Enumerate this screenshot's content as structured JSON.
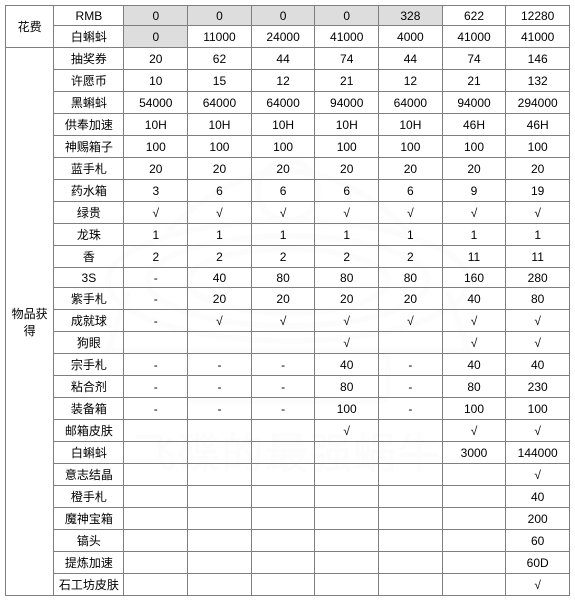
{
  "table": {
    "colors": {
      "border": "#7f7f7f",
      "shaded_bg": "#d9d9d9",
      "white_bg": "#ffffff",
      "text": "#000000"
    },
    "fontsize": 12,
    "section1_label": "花费",
    "section2_label": "物品获得",
    "header_cols": [
      "RMB",
      "0",
      "0",
      "0",
      "0",
      "328",
      "622",
      "12280"
    ],
    "shaded_cols": [
      2,
      3,
      4,
      5,
      6
    ],
    "cost_rows": [
      {
        "item": "白蝌蚪",
        "values": [
          "0",
          "11000",
          "24000",
          "41000",
          "4000",
          "41000",
          "41000"
        ],
        "shaded": [
          0
        ]
      }
    ],
    "item_rows": [
      {
        "item": "抽奖券",
        "values": [
          "20",
          "62",
          "44",
          "74",
          "44",
          "74",
          "146"
        ]
      },
      {
        "item": "许愿币",
        "values": [
          "10",
          "15",
          "12",
          "21",
          "12",
          "21",
          "132"
        ]
      },
      {
        "item": "黑蝌蚪",
        "values": [
          "54000",
          "64000",
          "64000",
          "94000",
          "64000",
          "94000",
          "294000"
        ]
      },
      {
        "item": "供奉加速",
        "values": [
          "10H",
          "10H",
          "10H",
          "10H",
          "10H",
          "46H",
          "46H"
        ]
      },
      {
        "item": "神赐箱子",
        "values": [
          "100",
          "100",
          "100",
          "100",
          "100",
          "100",
          "100"
        ]
      },
      {
        "item": "蓝手札",
        "values": [
          "20",
          "20",
          "20",
          "20",
          "20",
          "20",
          "20"
        ]
      },
      {
        "item": "药水箱",
        "values": [
          "3",
          "6",
          "6",
          "6",
          "6",
          "9",
          "19"
        ]
      },
      {
        "item": "绿贵",
        "values": [
          "√",
          "√",
          "√",
          "√",
          "√",
          "√",
          "√"
        ]
      },
      {
        "item": "龙珠",
        "values": [
          "1",
          "1",
          "1",
          "1",
          "1",
          "1",
          "1"
        ]
      },
      {
        "item": "香",
        "values": [
          "2",
          "2",
          "2",
          "2",
          "2",
          "11",
          "11"
        ]
      },
      {
        "item": "3S",
        "values": [
          "-",
          "40",
          "80",
          "80",
          "80",
          "160",
          "280"
        ]
      },
      {
        "item": "紫手札",
        "values": [
          "-",
          "20",
          "20",
          "20",
          "20",
          "40",
          "80"
        ]
      },
      {
        "item": "成就球",
        "values": [
          "-",
          "√",
          "√",
          "√",
          "√",
          "√",
          "√"
        ]
      },
      {
        "item": "狗眼",
        "values": [
          "",
          "",
          "",
          "√",
          "",
          "√",
          "√"
        ]
      },
      {
        "item": "宗手札",
        "values": [
          "-",
          "-",
          "-",
          "40",
          "-",
          "40",
          "40"
        ]
      },
      {
        "item": "粘合剂",
        "values": [
          "-",
          "-",
          "-",
          "80",
          "-",
          "80",
          "230"
        ]
      },
      {
        "item": "装备箱",
        "values": [
          "-",
          "-",
          "-",
          "100",
          "-",
          "100",
          "100"
        ]
      },
      {
        "item": "邮箱皮肤",
        "values": [
          "",
          "",
          "",
          "√",
          "",
          "√",
          "√"
        ]
      },
      {
        "item": "白蝌蚪",
        "values": [
          "",
          "",
          "",
          "",
          "",
          "3000",
          "144000"
        ]
      },
      {
        "item": "意志结晶",
        "values": [
          "",
          "",
          "",
          "",
          "",
          "",
          "√"
        ]
      },
      {
        "item": "橙手札",
        "values": [
          "",
          "",
          "",
          "",
          "",
          "",
          "40"
        ]
      },
      {
        "item": "魔神宝箱",
        "values": [
          "",
          "",
          "",
          "",
          "",
          "",
          "200"
        ]
      },
      {
        "item": "镐头",
        "values": [
          "",
          "",
          "",
          "",
          "",
          "",
          "60"
        ]
      },
      {
        "item": "提炼加速",
        "values": [
          "",
          "",
          "",
          "",
          "",
          "",
          "60D"
        ]
      },
      {
        "item": "石工坊皮肤",
        "values": [
          "",
          "",
          "",
          "",
          "",
          "",
          "√"
        ]
      }
    ]
  },
  "watermark_text": "飞碟的最强蜗牛"
}
